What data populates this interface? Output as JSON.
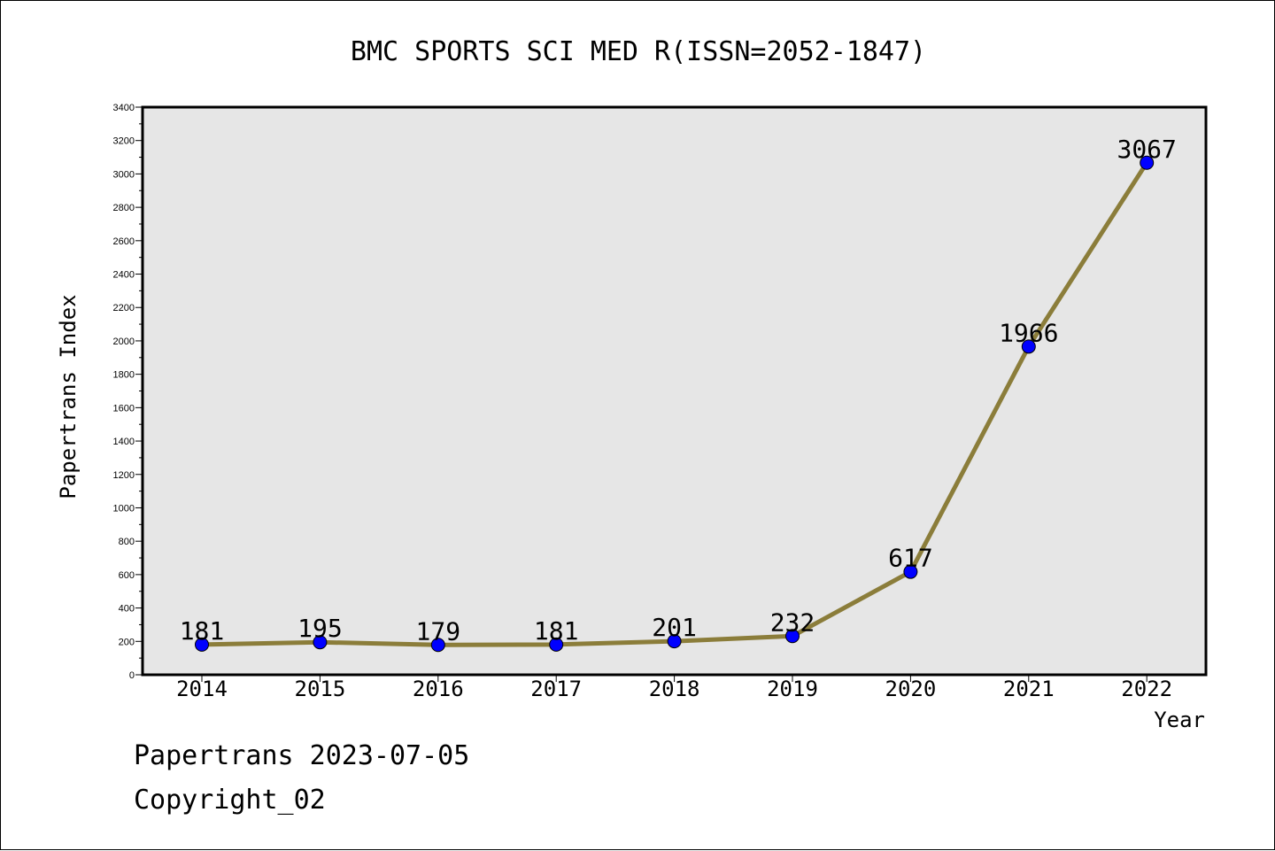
{
  "chart_data": {
    "type": "line",
    "title": "BMC SPORTS SCI MED R(ISSN=2052-1847)",
    "xlabel": "Year",
    "ylabel": "Papertrans Index",
    "categories": [
      "2014",
      "2015",
      "2016",
      "2017",
      "2018",
      "2019",
      "2020",
      "2021",
      "2022"
    ],
    "values": [
      181,
      195,
      179,
      181,
      201,
      232,
      617,
      1966,
      3067
    ],
    "data_labels": [
      "181",
      "195",
      "179",
      "181",
      "201",
      "232",
      "617",
      "1966",
      "3067"
    ],
    "ylim": [
      0,
      3400
    ],
    "yticks": [
      0,
      200,
      400,
      600,
      800,
      1000,
      1200,
      1400,
      1600,
      1800,
      2000,
      2200,
      2400,
      2600,
      2800,
      3000,
      3200,
      3400
    ],
    "grid": false,
    "line_color": "#8b7d3a",
    "marker_color": "#0000ff",
    "plot_background": "#e6e6e6"
  },
  "footer": {
    "line1": "Papertrans 2023-07-05",
    "line2": "Copyright_02"
  }
}
